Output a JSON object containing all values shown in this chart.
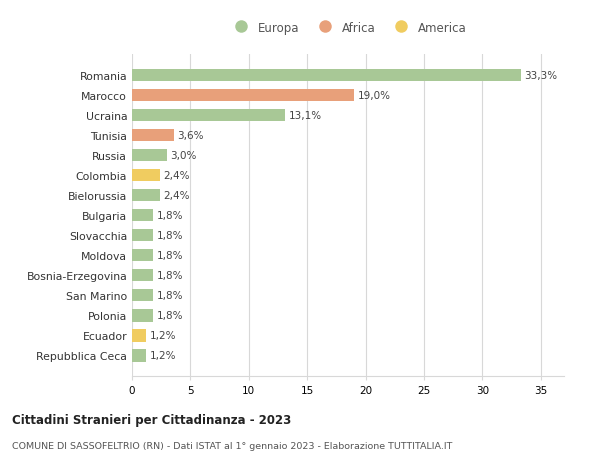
{
  "categories": [
    "Romania",
    "Marocco",
    "Ucraina",
    "Tunisia",
    "Russia",
    "Colombia",
    "Bielorussia",
    "Bulgaria",
    "Slovacchia",
    "Moldova",
    "Bosnia-Erzegovina",
    "San Marino",
    "Polonia",
    "Ecuador",
    "Repubblica Ceca"
  ],
  "values": [
    33.3,
    19.0,
    13.1,
    3.6,
    3.0,
    2.4,
    2.4,
    1.8,
    1.8,
    1.8,
    1.8,
    1.8,
    1.8,
    1.2,
    1.2
  ],
  "labels": [
    "33,3%",
    "19,0%",
    "13,1%",
    "3,6%",
    "3,0%",
    "2,4%",
    "2,4%",
    "1,8%",
    "1,8%",
    "1,8%",
    "1,8%",
    "1,8%",
    "1,8%",
    "1,2%",
    "1,2%"
  ],
  "continents": [
    "Europa",
    "Africa",
    "Europa",
    "Africa",
    "Europa",
    "America",
    "Europa",
    "Europa",
    "Europa",
    "Europa",
    "Europa",
    "Europa",
    "Europa",
    "America",
    "Europa"
  ],
  "colors": {
    "Europa": "#a8c896",
    "Africa": "#e8a07a",
    "America": "#f0cc60"
  },
  "legend": [
    "Europa",
    "Africa",
    "America"
  ],
  "legend_colors": [
    "#a8c896",
    "#e8a07a",
    "#f0cc60"
  ],
  "title": "Cittadini Stranieri per Cittadinanza - 2023",
  "subtitle": "COMUNE DI SASSOFELTRIO (RN) - Dati ISTAT al 1° gennaio 2023 - Elaborazione TUTTITALIA.IT",
  "xlim": [
    0,
    37
  ],
  "xticks": [
    0,
    5,
    10,
    15,
    20,
    25,
    30,
    35
  ],
  "bg_color": "#ffffff",
  "grid_color": "#d8d8d8"
}
